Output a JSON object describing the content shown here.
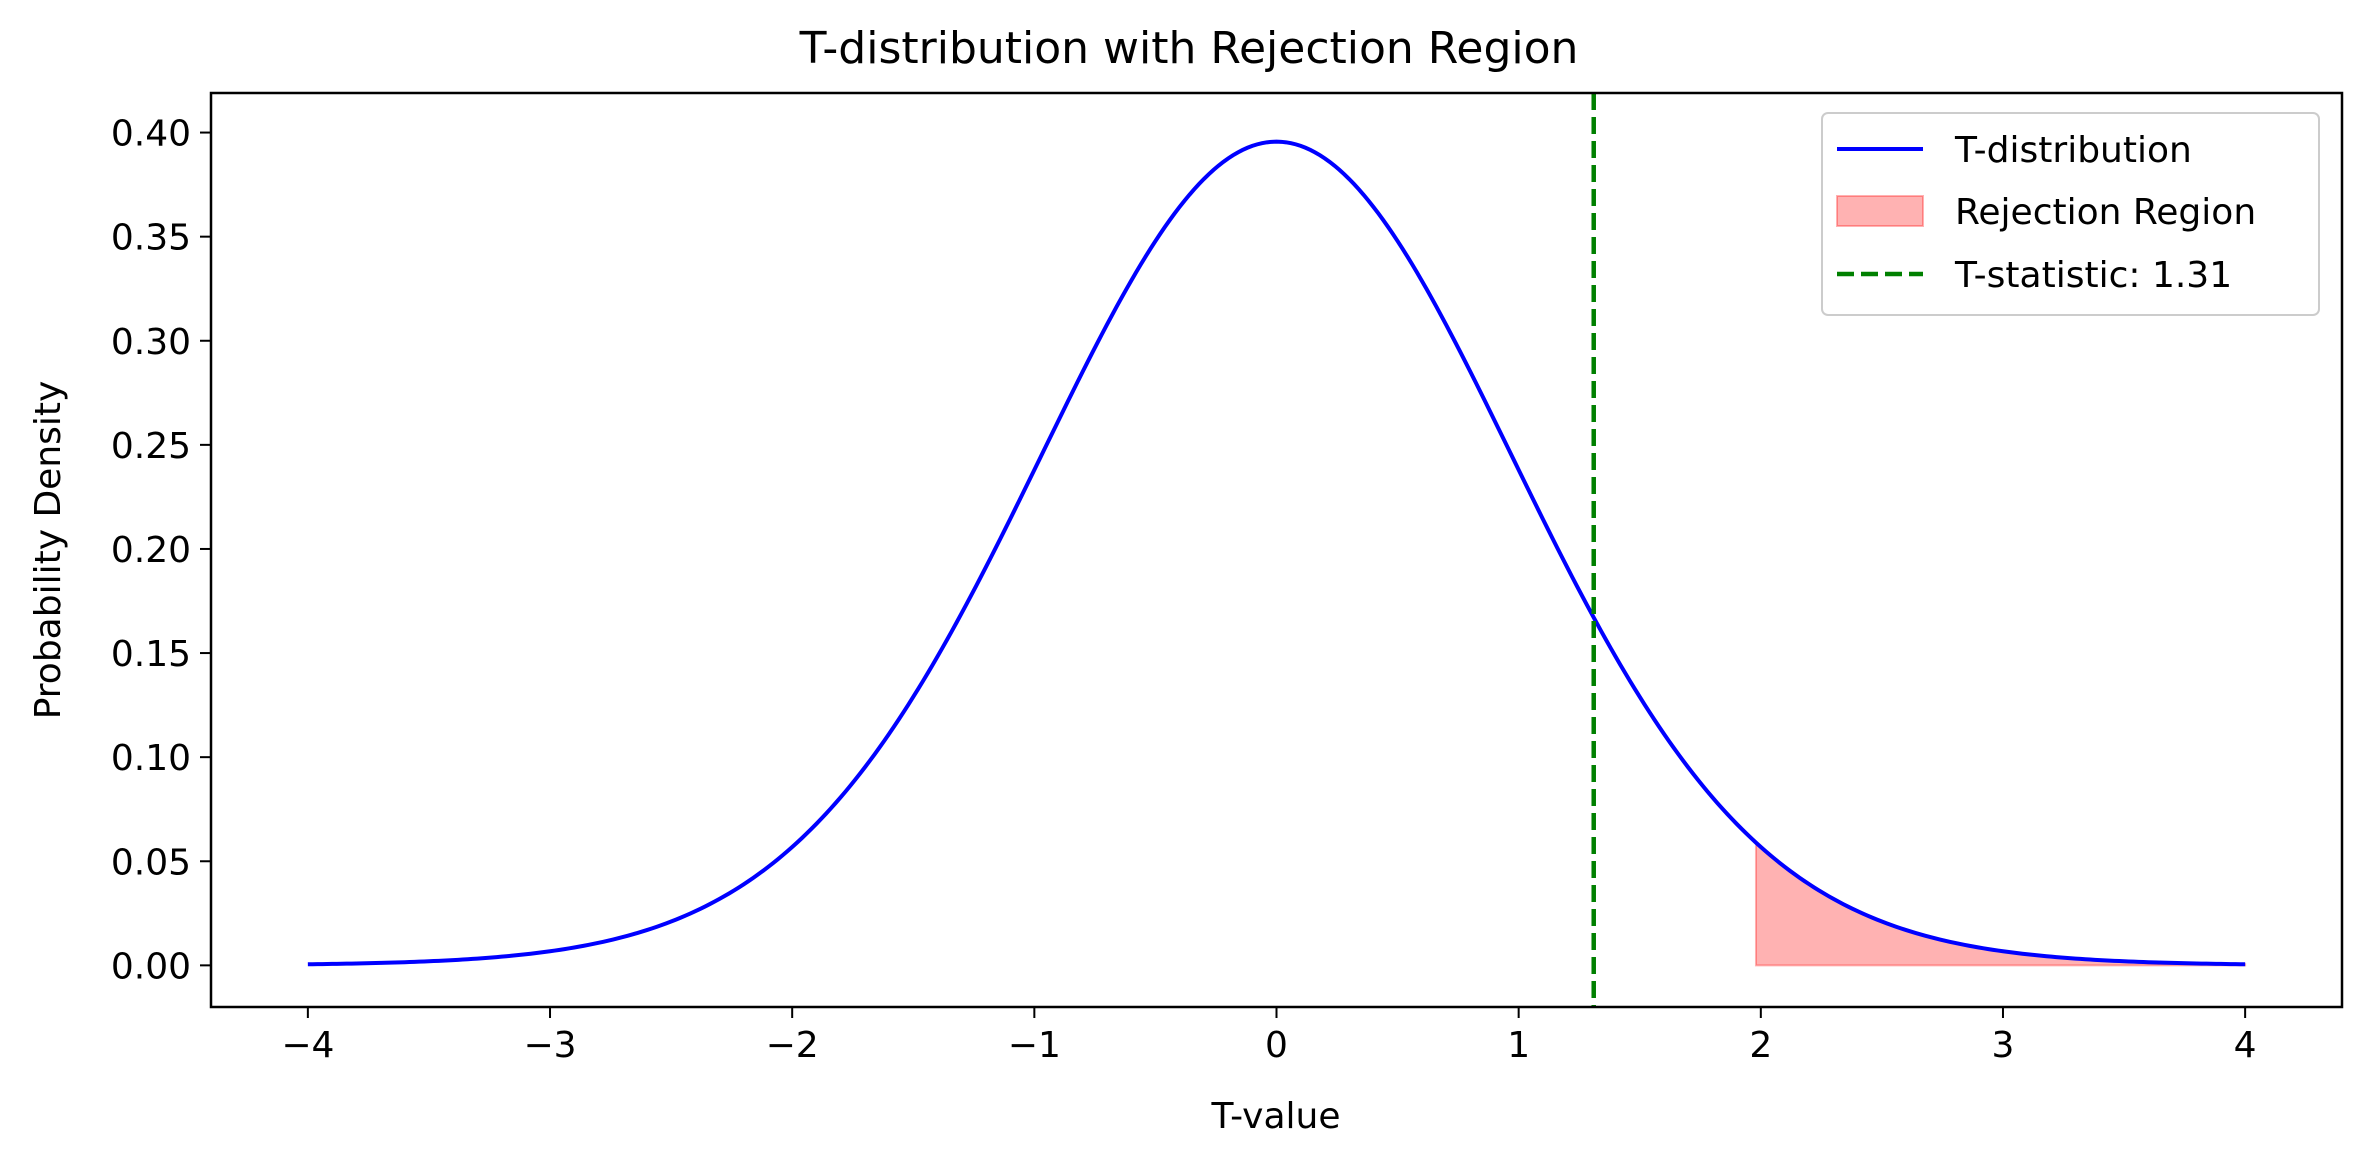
{
  "colors": {
    "curve": "#0000ff",
    "rejection_fill": "#ff0000",
    "statistic_line": "#008000",
    "axes": "#000000",
    "legend_border": "#cccccc"
  },
  "chart_data": {
    "type": "line",
    "title": "T-distribution with Rejection Region",
    "xlabel": "T-value",
    "ylabel": "Probability Density",
    "xlim": [
      -4.4,
      4.4
    ],
    "ylim": [
      -0.02,
      0.419
    ],
    "xticks": [
      -4,
      -3,
      -2,
      -1,
      0,
      1,
      2,
      3,
      4
    ],
    "xtick_labels": [
      "−4",
      "−3",
      "−2",
      "−1",
      "0",
      "1",
      "2",
      "3",
      "4"
    ],
    "yticks": [
      0.0,
      0.05,
      0.1,
      0.15,
      0.2,
      0.25,
      0.3,
      0.35,
      0.4
    ],
    "ytick_labels": [
      "0.00",
      "0.05",
      "0.10",
      "0.15",
      "0.20",
      "0.25",
      "0.30",
      "0.35",
      "0.40"
    ],
    "grid": false,
    "legend_position": "top-right",
    "series": [
      {
        "name": "T-distribution",
        "x": [
          -4.0,
          -3.5,
          -3.0,
          -2.75,
          -2.5,
          -2.25,
          -2.0,
          -1.75,
          -1.5,
          -1.25,
          -1.0,
          -0.75,
          -0.5,
          -0.25,
          0.0,
          0.25,
          0.5,
          0.75,
          1.0,
          1.25,
          1.5,
          1.75,
          2.0,
          2.25,
          2.5,
          2.75,
          3.0,
          3.5,
          4.0
        ],
        "y": [
          0.001,
          0.002,
          0.005,
          0.01,
          0.019,
          0.033,
          0.055,
          0.086,
          0.127,
          0.175,
          0.234,
          0.294,
          0.345,
          0.381,
          0.399,
          0.381,
          0.345,
          0.294,
          0.234,
          0.175,
          0.127,
          0.086,
          0.055,
          0.033,
          0.019,
          0.01,
          0.005,
          0.002,
          0.001
        ]
      }
    ],
    "rejection_region": {
      "name": "Rejection Region",
      "x_start": 1.98,
      "x_end": 4.0
    },
    "t_statistic": {
      "name": "T-statistic: 1.31",
      "value": 1.31
    }
  }
}
